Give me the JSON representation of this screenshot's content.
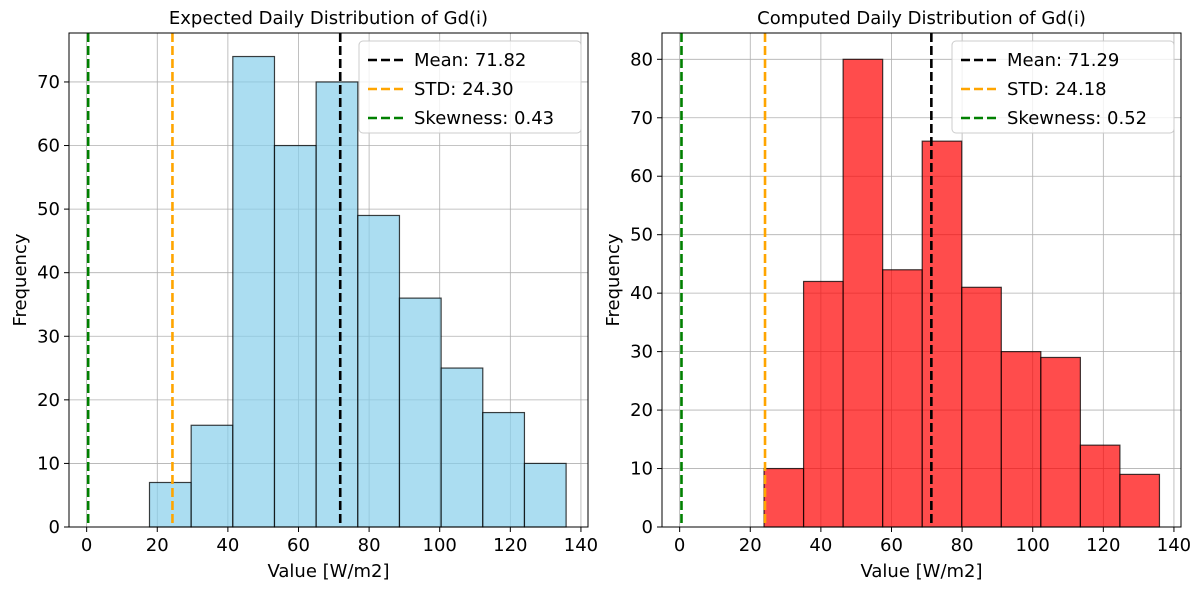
{
  "chart_data": [
    {
      "type": "bar",
      "title": "Expected Daily Distribution of Gd(i)",
      "xlabel": "Value [W/m2]",
      "ylabel": "Frequency",
      "xlim": [
        -5,
        142
      ],
      "ylim": [
        0,
        77.7
      ],
      "xticks": [
        0,
        20,
        40,
        60,
        80,
        100,
        120,
        140
      ],
      "yticks": [
        0,
        10,
        20,
        30,
        40,
        50,
        60,
        70
      ],
      "grid": true,
      "legend_position": "top-right",
      "bar_color": "#87ceeb",
      "bar_opacity": 0.7,
      "bar_edge_color": "#000000",
      "bins": [
        {
          "x0": 17.8,
          "x1": 29.6,
          "count": 7
        },
        {
          "x0": 29.6,
          "x1": 41.4,
          "count": 16
        },
        {
          "x0": 41.4,
          "x1": 53.2,
          "count": 74
        },
        {
          "x0": 53.2,
          "x1": 65.0,
          "count": 60
        },
        {
          "x0": 65.0,
          "x1": 76.8,
          "count": 70
        },
        {
          "x0": 76.8,
          "x1": 88.6,
          "count": 49
        },
        {
          "x0": 88.6,
          "x1": 100.4,
          "count": 36
        },
        {
          "x0": 100.4,
          "x1": 112.2,
          "count": 25
        },
        {
          "x0": 112.2,
          "x1": 124.0,
          "count": 18
        },
        {
          "x0": 124.0,
          "x1": 135.8,
          "count": 10
        }
      ],
      "vlines": [
        {
          "name": "Mean: 71.82",
          "x": 71.82,
          "color": "#000000"
        },
        {
          "name": "STD: 24.30",
          "x": 24.3,
          "color": "#ffa500"
        },
        {
          "name": "Skewness: 0.43",
          "x": 0.43,
          "color": "#008000"
        }
      ]
    },
    {
      "type": "bar",
      "title": "Computed Daily Distribution of Gd(i)",
      "xlabel": "Value [W/m2]",
      "ylabel": "Frequency",
      "xlim": [
        -5,
        142
      ],
      "ylim": [
        0,
        84.5
      ],
      "xticks": [
        0,
        20,
        40,
        60,
        80,
        100,
        120,
        140
      ],
      "yticks": [
        0,
        10,
        20,
        30,
        40,
        50,
        60,
        70,
        80
      ],
      "grid": true,
      "legend_position": "top-right",
      "bar_color": "#ff0000",
      "bar_opacity": 0.7,
      "bar_edge_color": "#000000",
      "bins": [
        {
          "x0": 23.9,
          "x1": 35.1,
          "count": 10
        },
        {
          "x0": 35.1,
          "x1": 46.3,
          "count": 42
        },
        {
          "x0": 46.3,
          "x1": 57.5,
          "count": 80
        },
        {
          "x0": 57.5,
          "x1": 68.7,
          "count": 44
        },
        {
          "x0": 68.7,
          "x1": 79.9,
          "count": 66
        },
        {
          "x0": 79.9,
          "x1": 91.1,
          "count": 41
        },
        {
          "x0": 91.1,
          "x1": 102.3,
          "count": 30
        },
        {
          "x0": 102.3,
          "x1": 113.5,
          "count": 29
        },
        {
          "x0": 113.5,
          "x1": 124.7,
          "count": 14
        },
        {
          "x0": 124.7,
          "x1": 135.9,
          "count": 9
        }
      ],
      "vlines": [
        {
          "name": "Mean: 71.29",
          "x": 71.29,
          "color": "#000000"
        },
        {
          "name": "STD: 24.18",
          "x": 24.18,
          "color": "#ffa500"
        },
        {
          "name": "Skewness: 0.52",
          "x": 0.52,
          "color": "#008000"
        }
      ]
    }
  ]
}
